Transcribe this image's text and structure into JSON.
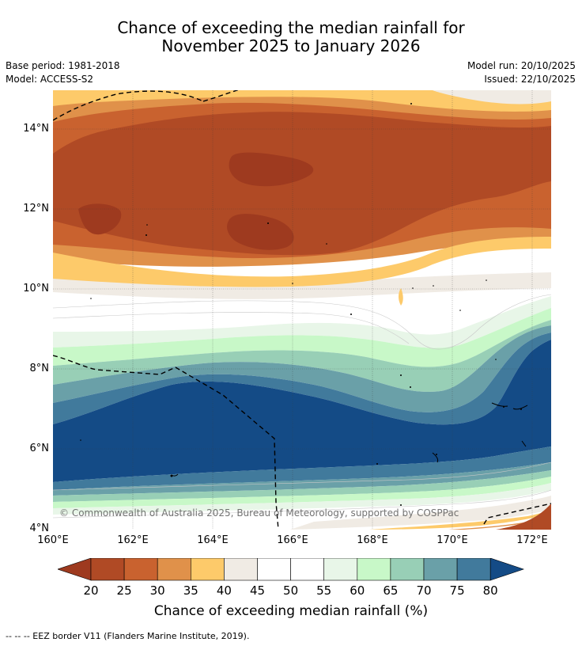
{
  "title": {
    "line1": "Chance of exceeding the median rainfall for",
    "line2": "November 2025 to January 2026"
  },
  "meta": {
    "base_period": "Base period: 1981-2018",
    "model": "Model: ACCESS-S2",
    "model_run": "Model run: 20/10/2025",
    "issued": "Issued: 22/10/2025"
  },
  "copyright": "© Commonwealth of Australia 2025, Bureau of Meteorology, supported by COSPPac",
  "footnote": "--  --  -- EEZ border V11 (Flanders Marine Institute, 2019).",
  "axes": {
    "lat_labels": [
      "14°N",
      "12°N",
      "10°N",
      "8°N",
      "6°N",
      "4°N"
    ],
    "lon_labels": [
      "160°E",
      "162°E",
      "164°E",
      "166°E",
      "168°E",
      "170°E",
      "172°E"
    ]
  },
  "colorbar": {
    "label": "Chance of exceeding median rainfall (%)",
    "ticks": [
      "20",
      "25",
      "30",
      "35",
      "40",
      "45",
      "50",
      "55",
      "60",
      "65",
      "70",
      "75",
      "80"
    ],
    "colors": [
      "#9e3a1f",
      "#b04a25",
      "#c9622f",
      "#e0914a",
      "#fdca6a",
      "#f0ebe4",
      "#ffffff",
      "#ffffff",
      "#e8f6e8",
      "#c8f8c8",
      "#98cfb6",
      "#6aa0a8",
      "#417a9c",
      "#144b86"
    ]
  },
  "map_colors": {
    "c20": "#9e3a1f",
    "c25": "#b04a25",
    "c30": "#c9622f",
    "c35": "#e0914a",
    "c40": "#fdca6a",
    "c45": "#f0ebe4",
    "c50": "#ffffff",
    "c55": "#ffffff",
    "c60": "#e8f6e8",
    "c65": "#c8f8c8",
    "c70": "#98cfb6",
    "c75": "#6aa0a8",
    "c80": "#417a9c",
    "c85": "#144b86"
  }
}
